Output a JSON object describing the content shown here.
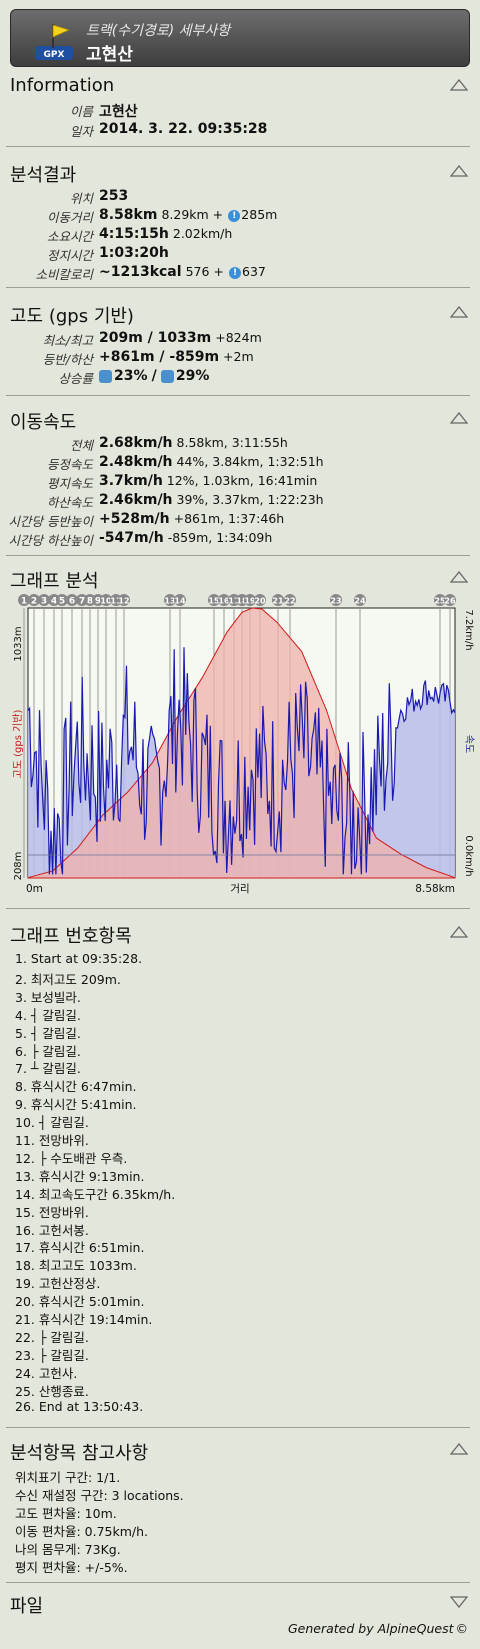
{
  "header": {
    "subtitle": "트랙(수기경로) 세부사항",
    "title": "고현산",
    "icon_label": "GPX"
  },
  "information": {
    "title": "Information",
    "rows": [
      {
        "label": "이름",
        "value": "고현산"
      },
      {
        "label": "일자",
        "value": "2014. 3. 22. 09:35:28"
      }
    ]
  },
  "analysis": {
    "title": "분석결과",
    "rows": [
      {
        "label": "위치",
        "value": "253",
        "extra": ""
      },
      {
        "label": "이동거리",
        "value": "8.58km",
        "extra": "8.29km +",
        "extra2": "285m"
      },
      {
        "label": "소요시간",
        "value": "4:15:15h",
        "extra": "2.02km/h"
      },
      {
        "label": "정지시간",
        "value": "1:03:20h",
        "extra": ""
      },
      {
        "label": "소비칼로리",
        "value": "~1213kcal",
        "extra": "576 +",
        "extra2": "637"
      }
    ]
  },
  "elevation": {
    "title": "고도 (gps 기반)",
    "rows": [
      {
        "label": "최소/최고",
        "value": "209m  /  1033m",
        "extra": "+824m"
      },
      {
        "label": "등반/하산",
        "value": "+861m  /  -859m",
        "extra": "+2m"
      },
      {
        "label": "상승률",
        "up": "23%",
        "sep": "/",
        "down": "29%"
      }
    ]
  },
  "speed": {
    "title": "이동속도",
    "rows": [
      {
        "label": "전체",
        "value": "2.68km/h",
        "extra": "8.58km, 3:11:55h"
      },
      {
        "label": "등정속도",
        "value": "2.48km/h",
        "extra": "44%, 3.84km, 1:32:51h"
      },
      {
        "label": "평지속도",
        "value": "3.7km/h",
        "extra": "12%, 1.03km, 16:41min"
      },
      {
        "label": "하산속도",
        "value": "2.46km/h",
        "extra": "39%, 3.37km, 1:22:23h"
      },
      {
        "label": "시간당 등반높이",
        "value": "+528m/h",
        "extra": "+861m, 1:37:46h"
      },
      {
        "label": "시간당 하산높이",
        "value": "-547m/h",
        "extra": "-859m, 1:34:09h"
      }
    ]
  },
  "graph": {
    "title": "그래프 분석",
    "y_left_max": "1033m",
    "y_left_min": "208m",
    "y_left_label": "고도 (gps 기반)",
    "y_right_max": "7.2km/h",
    "y_right_min": "0.0km/h",
    "y_right_label": "속도",
    "x_min": "0m",
    "x_max": "8.58km",
    "x_label": "거리",
    "markers": [
      "1",
      "2",
      "3",
      "4",
      "5",
      "6",
      "7",
      "8",
      "9",
      "10",
      "11",
      "12",
      "13",
      "14",
      "15",
      "16",
      "17",
      "18",
      "19",
      "20",
      "21",
      "22",
      "23",
      "24",
      "25",
      "26"
    ]
  },
  "chart_data": {
    "type": "area",
    "xlabel": "거리",
    "ylabel": "고도 (gps 기반)",
    "y2label": "속도",
    "xlim": [
      0,
      8.58
    ],
    "ylim": [
      208,
      1033
    ],
    "y2lim": [
      0,
      7.2
    ],
    "series": [
      {
        "name": "고도 (gps 기반)",
        "x": [
          0,
          0.5,
          1.0,
          1.5,
          2.0,
          2.5,
          3.0,
          3.5,
          4.0,
          4.3,
          4.5,
          4.7,
          5.0,
          5.5,
          6.0,
          6.5,
          7.0,
          7.5,
          8.0,
          8.58
        ],
        "values": [
          209,
          230,
          300,
          400,
          470,
          560,
          700,
          820,
          960,
          1020,
          1033,
          1030,
          990,
          900,
          720,
          480,
          330,
          280,
          240,
          209
        ]
      },
      {
        "name": "속도",
        "x": [
          0,
          0.5,
          1.0,
          1.5,
          2.0,
          2.5,
          3.0,
          3.5,
          4.0,
          4.5,
          5.0,
          5.5,
          6.0,
          6.5,
          7.0,
          7.5,
          8.0,
          8.58
        ],
        "values": [
          4.5,
          1.0,
          3.5,
          2.5,
          3.8,
          2.0,
          4.5,
          3.0,
          2.0,
          3.0,
          2.5,
          3.5,
          2.0,
          1.5,
          2.5,
          4.5,
          5.0,
          4.7
        ]
      }
    ]
  },
  "legend_items": {
    "title": "그래프 번호항목",
    "items": [
      "1. Start at 09:35:28.",
      "2. 최저고도 209m.",
      "3. 보성빌라.",
      "4. ┤ 갈림길.",
      "5. ┤ 갈림길.",
      "6. ├ 갈림길.",
      "7. ┴ 갈림길.",
      "8. 휴식시간 6:47min.",
      "9. 휴식시간 5:41min.",
      "10. ┤ 갈림길.",
      "11. 전망바위.",
      "12. ├  수도배관  우측.",
      "13. 휴식시간 9:13min.",
      "14. 최고속도구간 6.35km/h.",
      "15. 전망바위.",
      "16. 고헌서봉.",
      "17. 휴식시간 6:51min.",
      "18. 최고고도 1033m.",
      "19. 고헌산정상.",
      "20. 휴식시간 5:01min.",
      "21. 휴식시간 19:14min.",
      "22. ├ 갈림길.",
      "23. ├  갈림길.",
      "24. 고헌사.",
      "25. 산행종료.",
      "26. End at 13:50:43."
    ]
  },
  "notes": {
    "title": "분석항목 참고사항",
    "items": [
      "위치표기 구간: 1/1.",
      "수신 재설정 구간: 3 locations.",
      "고도 편차율: 10m.",
      "이동 편차율: 0.75km/h.",
      "나의 몸무게: 73Kg.",
      "평지 편차율: +/-5%."
    ]
  },
  "file": {
    "title": "파일"
  },
  "footer": {
    "text": "Generated by AlpineQuest",
    "symbol": "©"
  },
  "colors": {
    "background": "#e3e6da",
    "elevation": "#d11a1a",
    "speed": "#1a1ab0",
    "elevation_fill": "#f0b9b3",
    "speed_fill": "#b7bde9"
  }
}
